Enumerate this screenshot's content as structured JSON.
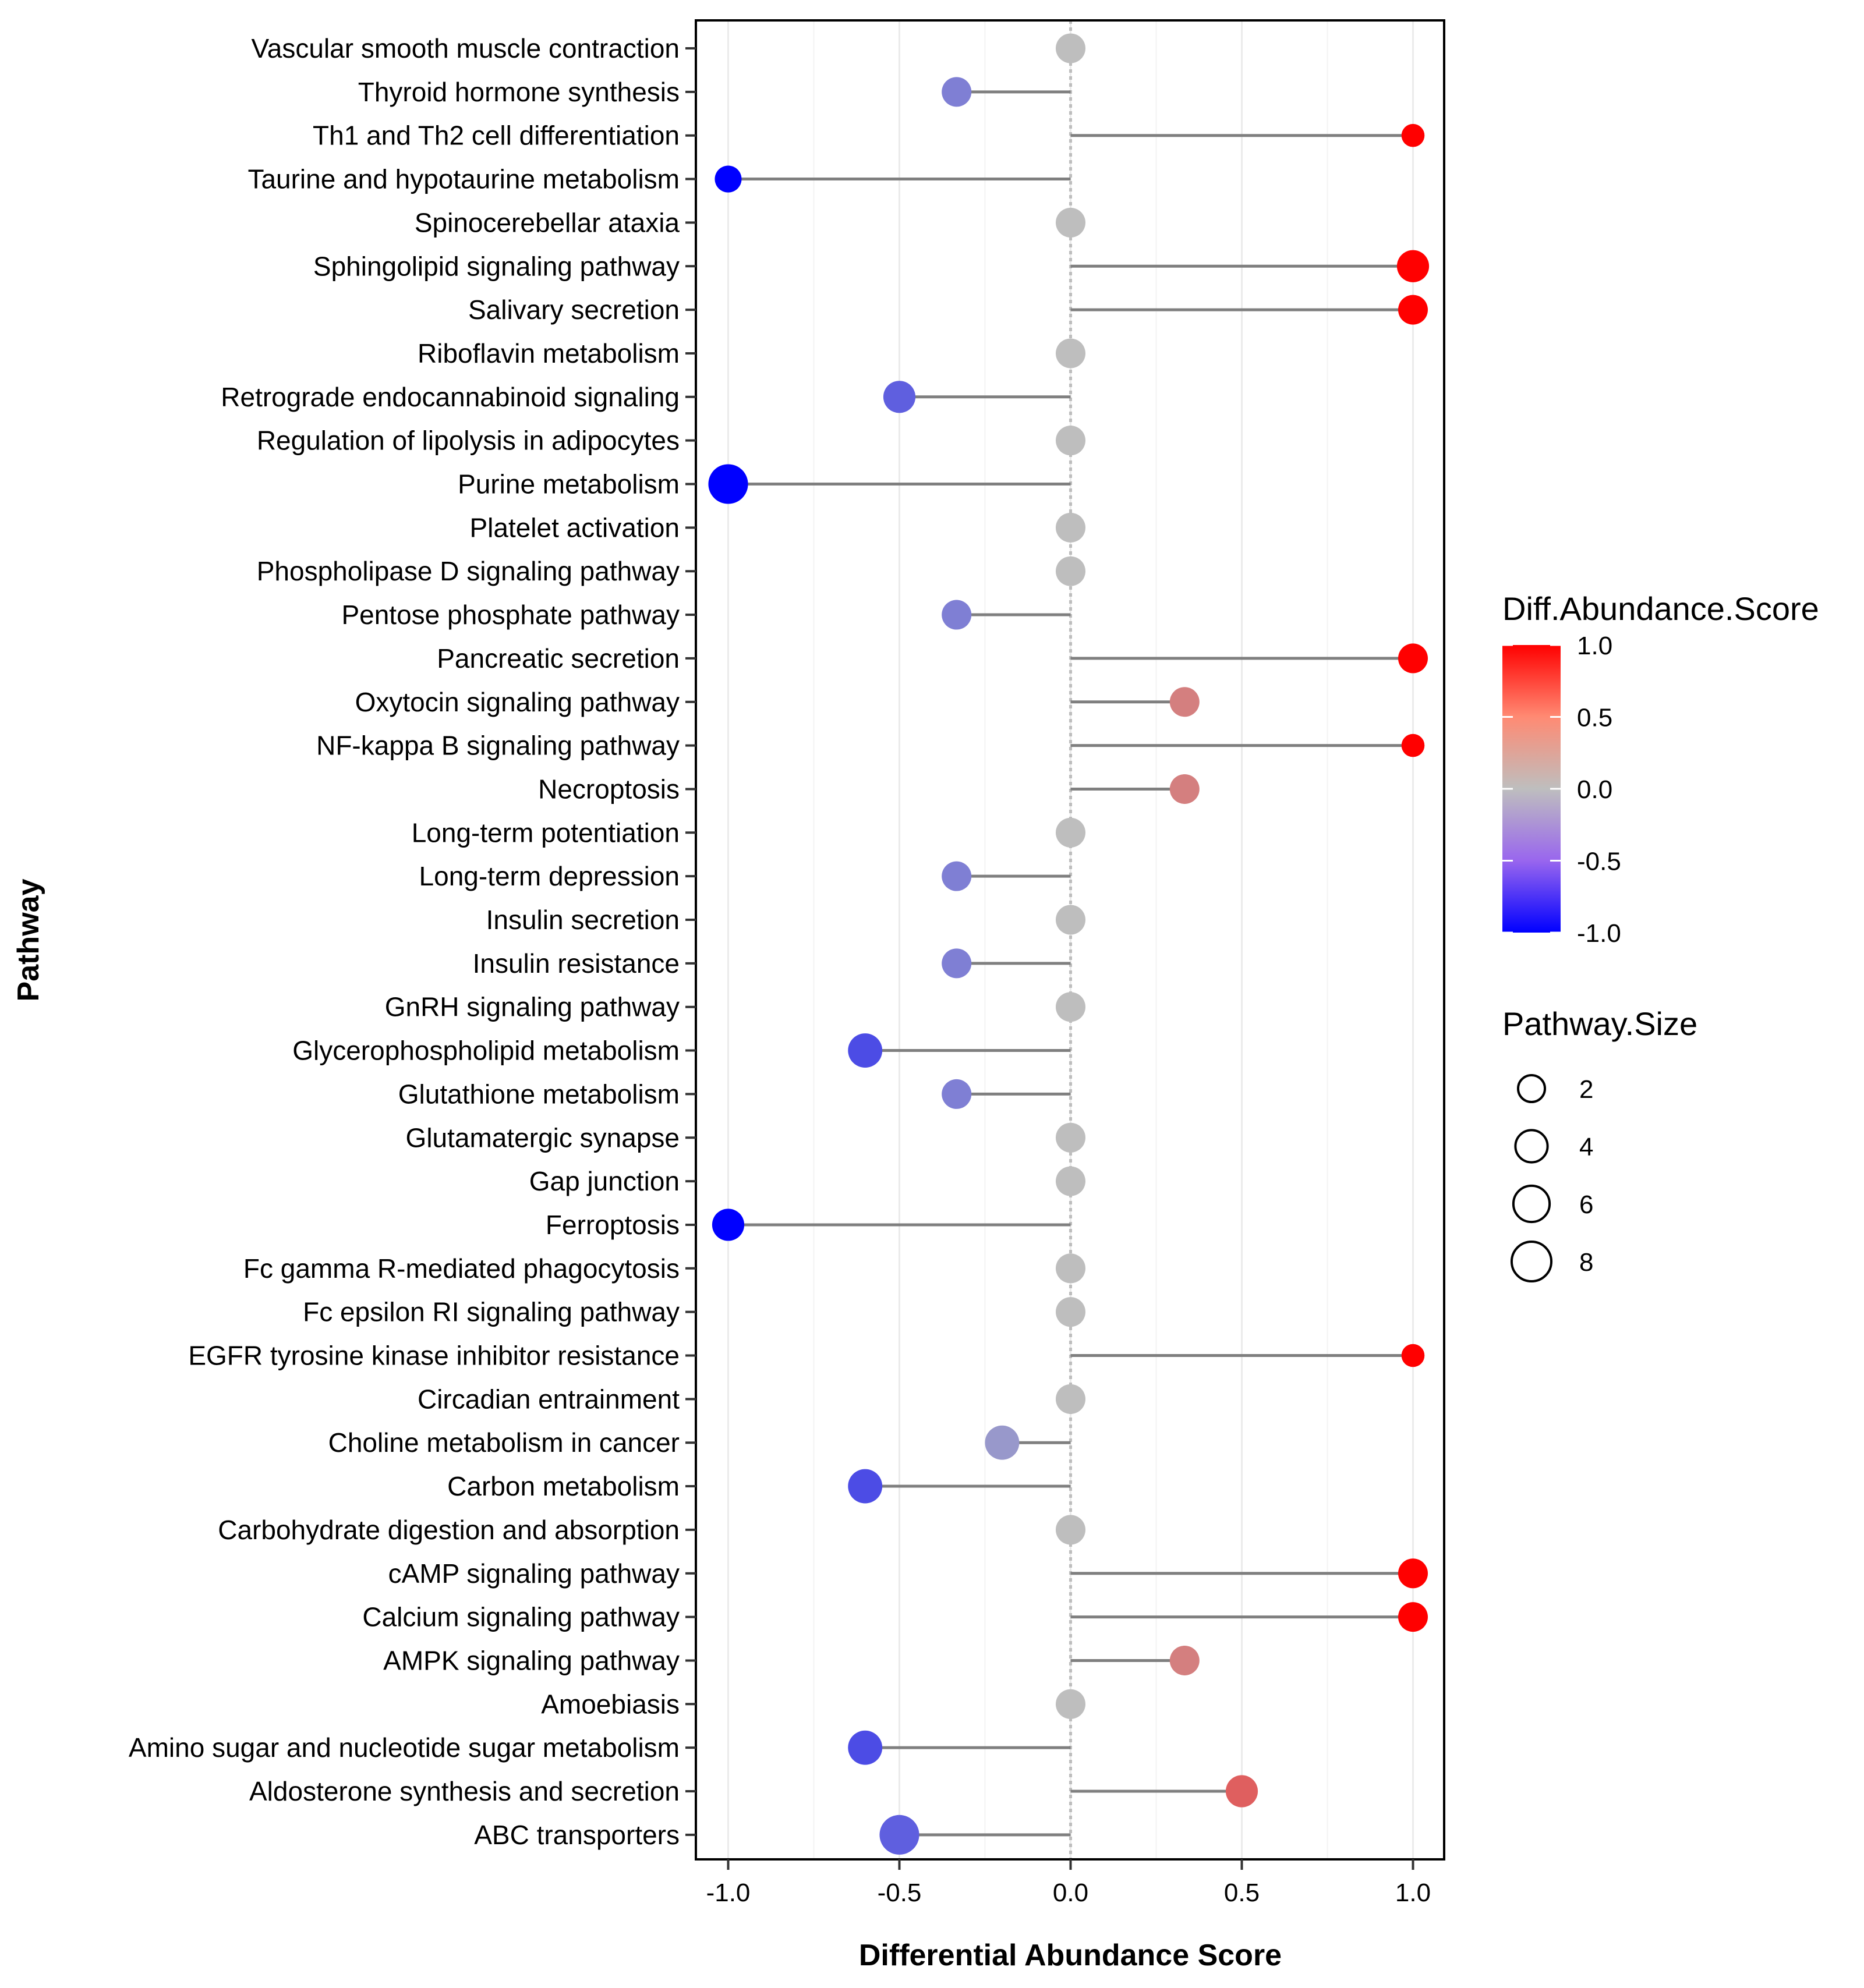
{
  "chart_data": {
    "type": "lollipop",
    "title": "",
    "xlabel": "Differential Abundance Score",
    "ylabel": "Pathway",
    "xlim": [
      -1.1,
      1.1
    ],
    "x_ticks": [
      "-1.0",
      "-0.5",
      "0.0",
      "0.5",
      "1.0"
    ],
    "grid": "vertical",
    "categories": [
      "Vascular smooth muscle contraction",
      "Thyroid hormone synthesis",
      "Th1 and Th2 cell differentiation",
      "Taurine and hypotaurine metabolism",
      "Spinocerebellar ataxia",
      "Sphingolipid signaling pathway",
      "Salivary secretion",
      "Riboflavin metabolism",
      "Retrograde endocannabinoid signaling",
      "Regulation of lipolysis in adipocytes",
      "Purine metabolism",
      "Platelet activation",
      "Phospholipase D signaling pathway",
      "Pentose phosphate pathway",
      "Pancreatic secretion",
      "Oxytocin signaling pathway",
      "NF-kappa B signaling pathway",
      "Necroptosis",
      "Long-term potentiation",
      "Long-term depression",
      "Insulin secretion",
      "Insulin resistance",
      "GnRH signaling pathway",
      "Glycerophospholipid metabolism",
      "Glutathione metabolism",
      "Glutamatergic synapse",
      "Gap junction",
      "Ferroptosis",
      "Fc gamma R-mediated phagocytosis",
      "Fc epsilon RI signaling pathway",
      "EGFR tyrosine kinase inhibitor resistance",
      "Circadian entrainment",
      "Choline metabolism in cancer",
      "Carbon metabolism",
      "Carbohydrate digestion and absorption",
      "cAMP signaling pathway",
      "Calcium signaling pathway",
      "AMPK signaling pathway",
      "Amoebiasis",
      "Amino sugar and nucleotide sugar metabolism",
      "Aldosterone synthesis and secretion",
      "ABC transporters"
    ],
    "scores": [
      0,
      -0.333,
      1,
      -1,
      0,
      1,
      1,
      0,
      -0.5,
      0,
      -1,
      0,
      0,
      -0.333,
      1,
      0.333,
      1,
      0.333,
      0,
      -0.333,
      0,
      -0.333,
      0,
      -0.6,
      -0.333,
      0,
      0,
      -1,
      0,
      0,
      1,
      0,
      -0.2,
      -0.6,
      0,
      1,
      1,
      0.333,
      0,
      -0.6,
      0.5,
      -0.5
    ],
    "sizes": [
      3,
      3,
      1,
      2,
      3,
      4,
      3,
      3,
      4,
      3,
      8,
      3,
      3,
      3,
      3,
      3,
      1,
      3,
      3,
      3,
      3,
      3,
      3,
      5,
      3,
      3,
      3,
      4,
      3,
      3,
      1,
      3,
      5,
      5,
      3,
      3,
      3,
      3,
      3,
      5,
      4,
      8
    ],
    "color_legend": {
      "title": "Diff.Abundance.Score",
      "labels": [
        "1.0",
        "0.5",
        "0.0",
        "-0.5",
        "-1.0"
      ],
      "low_color": "#0000ff",
      "mid_color": "#bebebe",
      "high_color": "#ff0000"
    },
    "size_legend": {
      "title": "Pathway.Size",
      "labels": [
        "2",
        "4",
        "6",
        "8"
      ]
    },
    "stem_color": "#7f7f7f",
    "zero_line_color": "#bdbdbd"
  }
}
